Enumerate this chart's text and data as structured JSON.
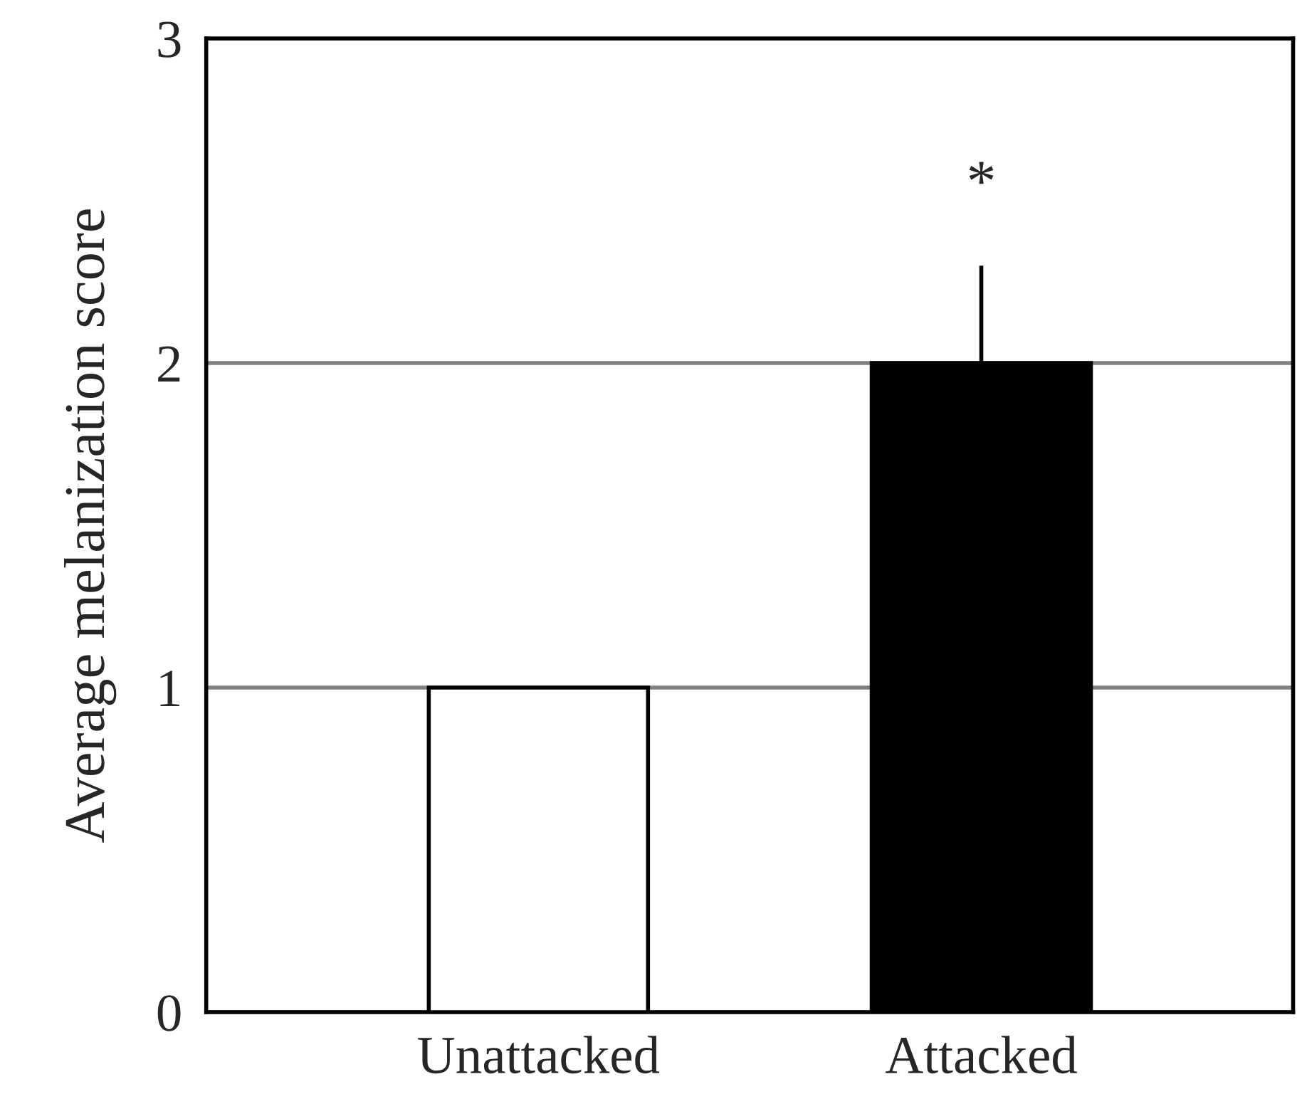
{
  "chart_data": {
    "type": "bar",
    "ylabel": "Average melanization score",
    "categories": [
      "Unattacked",
      "Attacked"
    ],
    "values": [
      1.0,
      2.0
    ],
    "colors": [
      "#ffffff",
      "#000000"
    ],
    "errors": [
      null,
      [
        2.0,
        2.3
      ]
    ],
    "ylim": [
      0,
      3
    ],
    "yticks": [
      0,
      1,
      2,
      3
    ],
    "grid": "y",
    "annotations": [
      "*"
    ]
  }
}
